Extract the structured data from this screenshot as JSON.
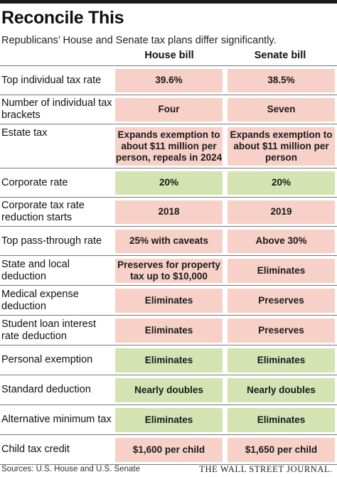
{
  "header": {
    "title": "Reconcile This",
    "subtitle": "Republicans’ House and Senate tax plans differ significantly.",
    "col_house": "House bill",
    "col_senate": "Senate bill"
  },
  "colors": {
    "differ": "#f7d0c8",
    "same": "#d3e3b1"
  },
  "rows": [
    {
      "label": "Top individual tax rate",
      "house": "39.6%",
      "senate": "38.5%",
      "status": "differ"
    },
    {
      "label": "Number of individual tax brackets",
      "house": "Four",
      "senate": "Seven",
      "status": "differ"
    },
    {
      "label": "Estate tax",
      "house": "Expands exemption to about $11 million per person, repeals in 2024",
      "senate": "Expands exemption to about $11 million per person",
      "status": "differ"
    },
    {
      "label": "Corporate rate",
      "house": "20%",
      "senate": "20%",
      "status": "same"
    },
    {
      "label": "Corporate tax rate reduction starts",
      "house": "2018",
      "senate": "2019",
      "status": "differ"
    },
    {
      "label": "Top pass-through rate",
      "house": "25% with caveats",
      "senate": "Above 30%",
      "status": "differ"
    },
    {
      "label": "State and local deduction",
      "house": "Preserves for property tax up to $10,000",
      "senate": "Eliminates",
      "status": "differ"
    },
    {
      "label": "Medical expense deduction",
      "house": "Eliminates",
      "senate": "Preserves",
      "status": "differ"
    },
    {
      "label": "Student loan interest rate deduction",
      "house": "Eliminates",
      "senate": "Preserves",
      "status": "differ"
    },
    {
      "label": "Personal exemption",
      "house": "Eliminates",
      "senate": "Eliminates",
      "status": "same"
    },
    {
      "label": "Standard deduction",
      "house": "Nearly doubles",
      "senate": "Nearly doubles",
      "status": "same"
    },
    {
      "label": "Alternative minimum tax",
      "house": "Eliminates",
      "senate": "Eliminates",
      "status": "same"
    },
    {
      "label": "Child tax credit",
      "house": "$1,600 per child",
      "senate": "$1,650 per child",
      "status": "differ"
    }
  ],
  "footer": {
    "sources": "Sources: U.S. House and U.S. Senate",
    "brand": "THE WALL STREET JOURNAL."
  }
}
